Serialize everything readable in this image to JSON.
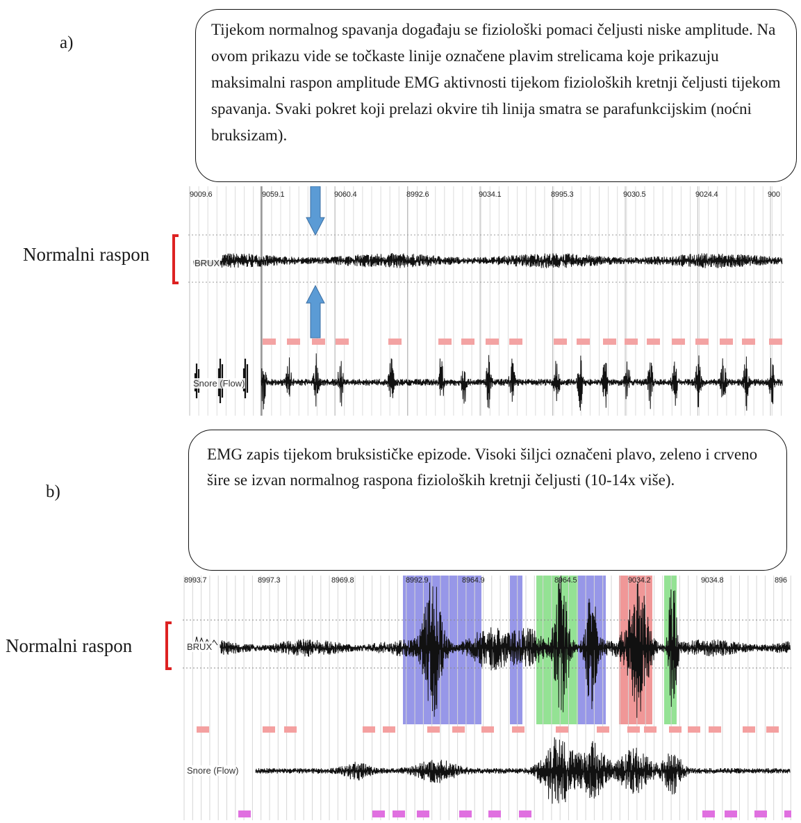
{
  "figure": {
    "panel_a": {
      "label": "a)",
      "caption": "Tijekom normalnog spavanja događaju se fiziološki pomaci čeljusti niske amplitude. Na ovom prikazu vide se točkaste linije označene plavim strelicama koje prikazuju maksimalni raspon amplitude EMG aktivnosti tijekom fizioloških kretnji čeljusti tijekom spavanja. Svaki pokret koji prelazi okvire tih linija smatra se parafunkcijskim (noćni bruksizam).",
      "range_label": "Normalni raspon",
      "time_ticks": [
        "9009.6",
        "9059.1",
        "9060.4",
        "8992.6",
        "9034.1",
        "8995.3",
        "9030.5",
        "9024.4",
        "900"
      ],
      "channels": [
        "BRUX",
        "Snore (Flow)"
      ],
      "arrow_color": "#5b9bd5",
      "bracket_color": "#dd2222"
    },
    "panel_b": {
      "label": "b)",
      "caption": "EMG zapis tijekom bruksističke epizode. Visoki šiljci označeni plavo, zeleno i crveno šire se izvan normalnog raspona fizioloških kretnji čeljusti (10-14x više).",
      "range_label": "Normalni raspon",
      "time_ticks": [
        "8993.7",
        "8997.3",
        "8969.8",
        "8992.9",
        "8964.9",
        "8964.5",
        "9034.2",
        "9034.8",
        "896"
      ],
      "channels": [
        "BRUX",
        "Snore (Flow)"
      ],
      "highlight_colors": {
        "blue": "#8c8ce6",
        "green": "#8ee08e",
        "red": "#ee8c8c"
      },
      "event_marker_color": "#f4a0a0",
      "snore_marker_color": "#e070e0",
      "bracket_color": "#dd2222"
    }
  }
}
